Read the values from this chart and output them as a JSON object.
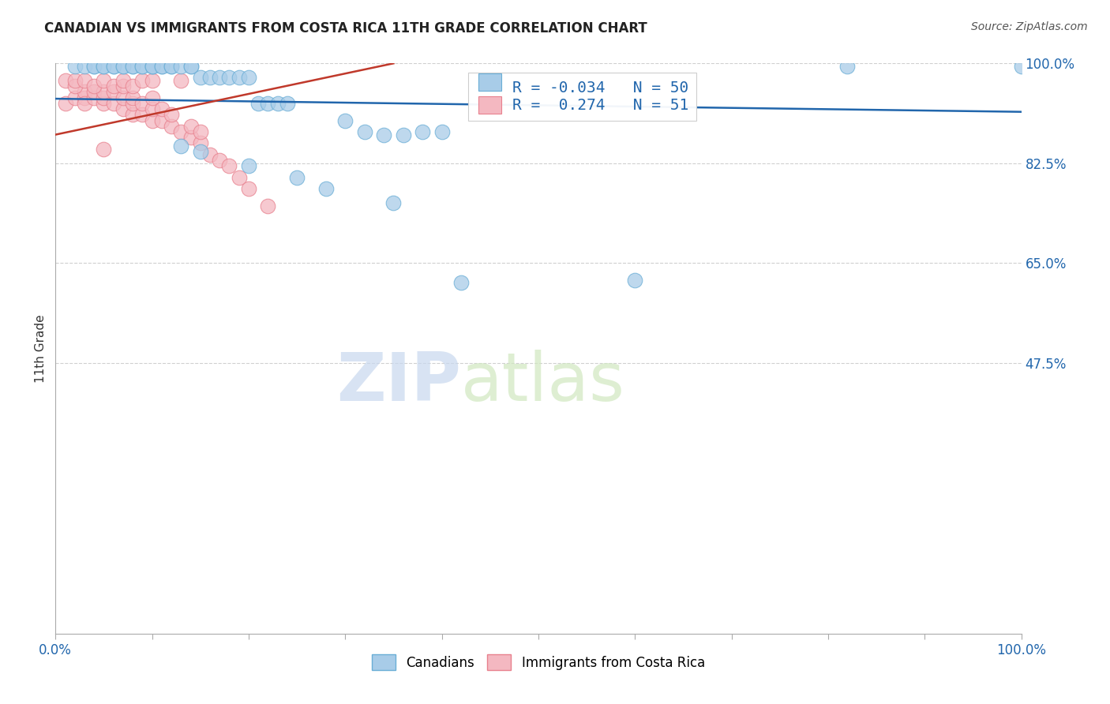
{
  "title": "CANADIAN VS IMMIGRANTS FROM COSTA RICA 11TH GRADE CORRELATION CHART",
  "ylabel": "11th Grade",
  "source_text": "Source: ZipAtlas.com",
  "watermark_zip": "ZIP",
  "watermark_atlas": "atlas",
  "r_canadian": -0.034,
  "n_canadian": 50,
  "r_costarica": 0.274,
  "n_costarica": 51,
  "xlim": [
    0.0,
    1.0
  ],
  "ylim": [
    0.0,
    1.0
  ],
  "yticks": [
    0.475,
    0.65,
    0.825,
    1.0
  ],
  "ytick_labels": [
    "47.5%",
    "65.0%",
    "82.5%",
    "100.0%"
  ],
  "canadian_color": "#a8cce8",
  "canadian_edge": "#6aaed6",
  "costarica_color": "#f4b8c1",
  "costarica_edge": "#e8818e",
  "trend_blue": "#2166ac",
  "trend_pink": "#c0392b",
  "background": "#ffffff",
  "grid_color": "#d0d0d0",
  "canadians_x": [
    0.02,
    0.03,
    0.04,
    0.04,
    0.05,
    0.05,
    0.06,
    0.06,
    0.07,
    0.07,
    0.08,
    0.08,
    0.09,
    0.09,
    0.1,
    0.1,
    0.1,
    0.11,
    0.11,
    0.12,
    0.12,
    0.13,
    0.14,
    0.14,
    0.15,
    0.16,
    0.17,
    0.18,
    0.19,
    0.2,
    0.21,
    0.22,
    0.23,
    0.24,
    0.3,
    0.32,
    0.34,
    0.36,
    0.38,
    0.4,
    0.13,
    0.15,
    0.2,
    0.25,
    0.28,
    0.35,
    0.6,
    0.82,
    1.0,
    0.42
  ],
  "canadians_y": [
    0.995,
    0.995,
    0.995,
    0.995,
    0.995,
    0.995,
    0.995,
    0.995,
    0.995,
    0.995,
    0.995,
    0.995,
    0.995,
    0.995,
    0.995,
    0.995,
    0.995,
    0.995,
    0.995,
    0.995,
    0.995,
    0.995,
    0.995,
    0.995,
    0.975,
    0.975,
    0.975,
    0.975,
    0.975,
    0.975,
    0.93,
    0.93,
    0.93,
    0.93,
    0.9,
    0.88,
    0.875,
    0.875,
    0.88,
    0.88,
    0.855,
    0.845,
    0.82,
    0.8,
    0.78,
    0.755,
    0.62,
    0.995,
    0.995,
    0.615
  ],
  "costarica_x": [
    0.01,
    0.02,
    0.03,
    0.03,
    0.03,
    0.04,
    0.04,
    0.05,
    0.05,
    0.05,
    0.06,
    0.06,
    0.07,
    0.07,
    0.08,
    0.08,
    0.08,
    0.09,
    0.09,
    0.1,
    0.1,
    0.1,
    0.11,
    0.11,
    0.12,
    0.12,
    0.13,
    0.14,
    0.14,
    0.15,
    0.15,
    0.16,
    0.17,
    0.18,
    0.19,
    0.2,
    0.22,
    0.01,
    0.02,
    0.02,
    0.03,
    0.04,
    0.05,
    0.06,
    0.07,
    0.07,
    0.08,
    0.09,
    0.1,
    0.13,
    0.05
  ],
  "costarica_y": [
    0.93,
    0.94,
    0.94,
    0.95,
    0.93,
    0.94,
    0.95,
    0.93,
    0.94,
    0.95,
    0.93,
    0.95,
    0.92,
    0.94,
    0.91,
    0.93,
    0.94,
    0.91,
    0.93,
    0.9,
    0.92,
    0.94,
    0.9,
    0.92,
    0.89,
    0.91,
    0.88,
    0.87,
    0.89,
    0.86,
    0.88,
    0.84,
    0.83,
    0.82,
    0.8,
    0.78,
    0.75,
    0.97,
    0.96,
    0.97,
    0.97,
    0.96,
    0.97,
    0.96,
    0.96,
    0.97,
    0.96,
    0.97,
    0.97,
    0.97,
    0.85
  ],
  "blue_trend_x": [
    0.0,
    1.0
  ],
  "blue_trend_y": [
    0.938,
    0.915
  ],
  "pink_trend_x": [
    0.0,
    0.35
  ],
  "pink_trend_y": [
    0.875,
    1.0
  ]
}
